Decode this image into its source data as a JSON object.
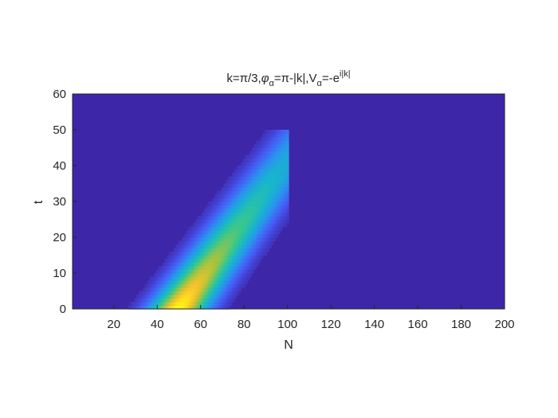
{
  "chart_data": {
    "type": "heatmap",
    "title": "k=π/3,φα=π-|k|,Vα=-ei|k|",
    "title_parts": {
      "k_part": "k=π/3,",
      "phi": "φ",
      "phi_sub": "α",
      "phi_rhs": "=π-|k|,",
      "V": "V",
      "V_sub": "α",
      "V_rhs": "=-e",
      "V_sup": "i|k|"
    },
    "xlabel": "N",
    "ylabel": "t",
    "xlim": [
      1,
      200
    ],
    "ylim": [
      0,
      60
    ],
    "xticks": [
      20,
      40,
      60,
      80,
      100,
      120,
      140,
      160,
      180,
      200
    ],
    "yticks": [
      0,
      10,
      20,
      30,
      40,
      50,
      60
    ],
    "grid": false,
    "colormap": "parula",
    "background_value": 0,
    "field": {
      "description": "Bright diagonal band of intensity, ending abruptly at N=100",
      "band_center_N_at_t0": 50,
      "band_slope_N_per_t": 1.2,
      "band_width_N": 13,
      "intensity_decay_per_t": 0.022,
      "cutoff_N": 100,
      "cutoff_max_t": 50
    },
    "colors": {
      "background_cell": "#3e26a8",
      "axis": "#262626",
      "peak": "#f9fb0e"
    }
  }
}
